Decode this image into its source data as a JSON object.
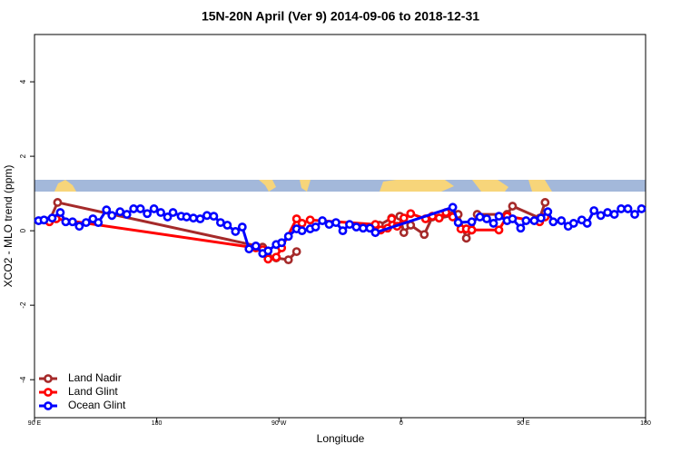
{
  "chart_data": {
    "type": "line",
    "title": "15N-20N April (Ver 9)   2014-09-06 to 2018-12-31",
    "x_label": "Longitude",
    "y_label": "XCO2 - MLO trend (ppm)",
    "xlim": [
      90,
      540
    ],
    "ylim": [
      -5.02,
      5.27
    ],
    "xticks": [
      {
        "value": 90,
        "label": "90 E"
      },
      {
        "value": 180,
        "label": "180"
      },
      {
        "value": 270,
        "label": "90 W"
      },
      {
        "value": 360,
        "label": "0"
      },
      {
        "value": 450,
        "label": "90 E"
      },
      {
        "value": 540,
        "label": "180"
      }
    ],
    "yticks": [
      -4,
      -2,
      0,
      2,
      4
    ],
    "legend": "bottomleft",
    "series": [
      {
        "name": "Land Nadir",
        "color": "#a52a2a",
        "x": [
          101,
          107,
          258,
          262,
          268,
          277,
          283,
          293,
          344,
          353,
          359,
          362,
          367,
          377,
          383,
          388,
          398,
          402,
          408,
          412,
          416,
          438,
          442,
          462,
          466
        ],
        "values": [
          0.27,
          0.76,
          -0.44,
          -0.71,
          -0.73,
          -0.78,
          -0.56,
          null,
          0.15,
          0.34,
          0.39,
          -0.05,
          0.15,
          -0.1,
          0.37,
          0.34,
          0.41,
          0.44,
          -0.2,
          0.02,
          0.44,
          0.44,
          0.66,
          0.34,
          0.76
        ]
      },
      {
        "name": "Land Glint",
        "color": "#ff0000",
        "x": [
          101,
          106,
          253,
          258,
          262,
          268,
          272,
          283,
          287,
          293,
          341,
          345,
          350,
          353,
          357,
          362,
          367,
          378,
          383,
          388,
          393,
          398,
          404,
          408,
          412,
          432,
          438,
          462,
          466
        ],
        "values": [
          0.24,
          0.32,
          -0.46,
          -0.51,
          -0.76,
          -0.71,
          -0.46,
          0.32,
          0.2,
          0.29,
          0.17,
          0.02,
          0.07,
          0.32,
          0.12,
          0.34,
          0.46,
          0.32,
          0.39,
          0.34,
          0.49,
          0.37,
          0.05,
          0.05,
          0.02,
          0.02,
          0.39,
          0.24,
          0.37
        ]
      },
      {
        "name": "Ocean Glint",
        "color": "#0000ff",
        "x": [
          93,
          97,
          103,
          109,
          113,
          118,
          123,
          128,
          133,
          137,
          143,
          147,
          153,
          158,
          163,
          168,
          173,
          178,
          183,
          188,
          192,
          198,
          202,
          207,
          212,
          217,
          222,
          227,
          232,
          238,
          243,
          248,
          253,
          258,
          262,
          268,
          272,
          277,
          283,
          287,
          293,
          297,
          302,
          307,
          312,
          317,
          322,
          327,
          332,
          337,
          341,
          398,
          402,
          412,
          418,
          423,
          428,
          432,
          438,
          442,
          448,
          452,
          458,
          463,
          468,
          472,
          478,
          483,
          487,
          493,
          497,
          502,
          507,
          512,
          517,
          522,
          527,
          532,
          537
        ],
        "values": [
          0.27,
          0.29,
          0.34,
          0.49,
          0.24,
          0.24,
          0.12,
          0.22,
          0.32,
          0.22,
          0.56,
          0.41,
          0.51,
          0.44,
          0.59,
          0.59,
          0.46,
          0.59,
          0.49,
          0.37,
          0.49,
          0.39,
          0.37,
          0.34,
          0.32,
          0.41,
          0.39,
          0.22,
          0.15,
          -0.02,
          0.1,
          -0.49,
          -0.41,
          -0.61,
          -0.54,
          -0.37,
          -0.32,
          -0.15,
          0.05,
          0,
          0.05,
          0.1,
          0.27,
          0.17,
          0.22,
          0,
          0.17,
          0.1,
          0.07,
          0.07,
          -0.05,
          0.63,
          0.22,
          0.24,
          0.37,
          0.32,
          0.2,
          0.39,
          0.27,
          0.32,
          0.07,
          0.27,
          0.27,
          0.34,
          0.51,
          0.24,
          0.27,
          0.12,
          0.2,
          0.29,
          0.2,
          0.54,
          0.41,
          0.49,
          0.44,
          0.59,
          0.59,
          0.44,
          0.59
        ]
      }
    ]
  }
}
